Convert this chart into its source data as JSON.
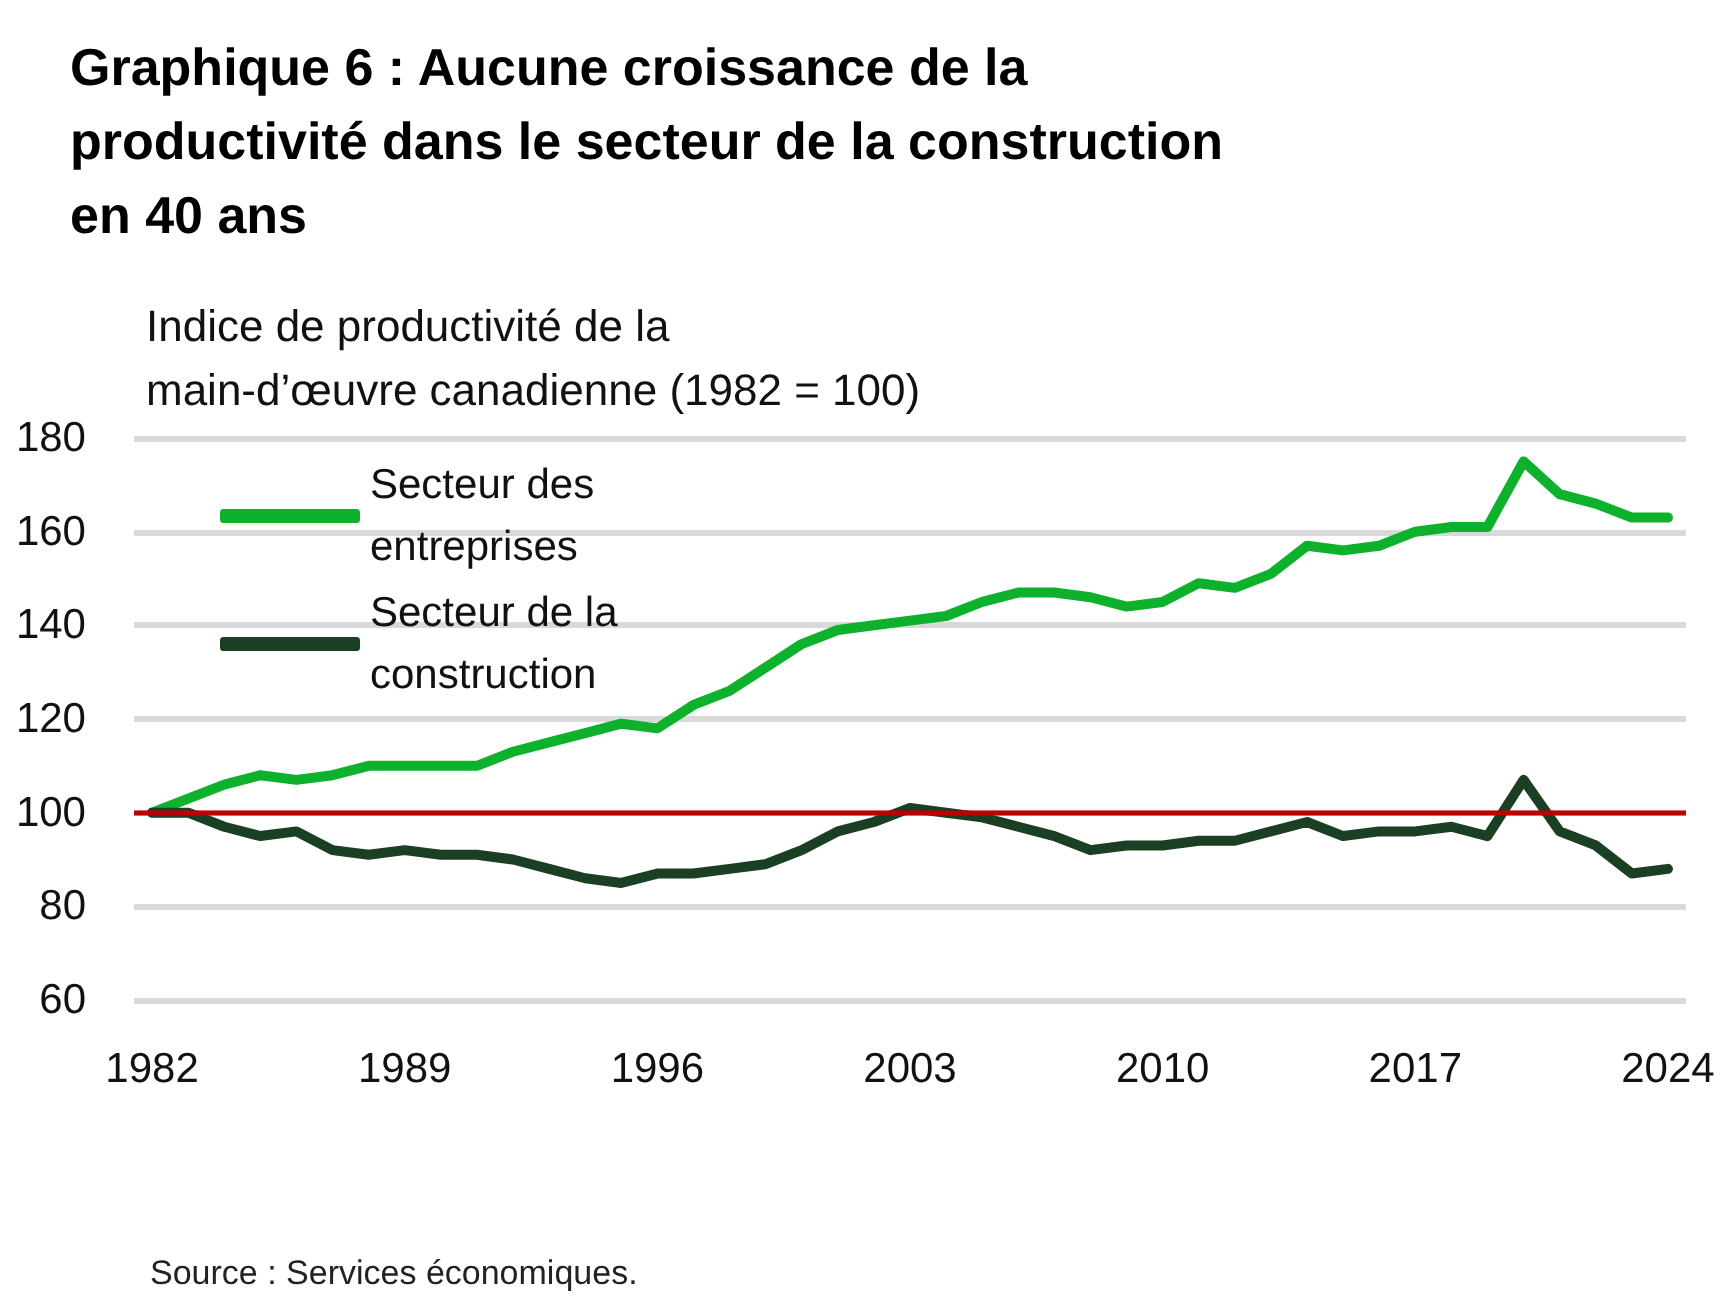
{
  "chart_data": {
    "type": "line",
    "title": "Graphique 6 : Aucune croissance de la productivité dans le secteur de la construction en 40 ans",
    "ylabel": "Indice de productivité de la main-d’œuvre canadienne (1982 = 100)",
    "annotations": [
      "Source : Services économiques."
    ],
    "x": [
      1982,
      1983,
      1984,
      1985,
      1986,
      1987,
      1988,
      1989,
      1990,
      1991,
      1992,
      1993,
      1994,
      1995,
      1996,
      1997,
      1998,
      1999,
      2000,
      2001,
      2002,
      2003,
      2004,
      2005,
      2006,
      2007,
      2008,
      2009,
      2010,
      2011,
      2012,
      2013,
      2014,
      2015,
      2016,
      2017,
      2018,
      2019,
      2020,
      2021,
      2022,
      2023,
      2024
    ],
    "series": [
      {
        "name": "Secteur des entreprises",
        "color": "#0db12b",
        "values": [
          100,
          103,
          106,
          108,
          107,
          108,
          110,
          110,
          110,
          110,
          113,
          115,
          117,
          119,
          118,
          123,
          126,
          131,
          136,
          139,
          140,
          141,
          142,
          145,
          147,
          147,
          146,
          144,
          145,
          149,
          148,
          151,
          157,
          156,
          157,
          160,
          161,
          161,
          175,
          168,
          166,
          163,
          163
        ]
      },
      {
        "name": "Secteur de la construction",
        "color": "#1a3f22",
        "values": [
          100,
          100,
          97,
          95,
          96,
          92,
          91,
          92,
          91,
          91,
          90,
          88,
          86,
          85,
          87,
          87,
          88,
          89,
          92,
          96,
          98,
          101,
          100,
          99,
          97,
          95,
          92,
          93,
          93,
          94,
          94,
          96,
          98,
          95,
          96,
          96,
          97,
          95,
          107,
          96,
          93,
          87,
          88
        ]
      }
    ],
    "xlim": [
      1981.5,
      2024.5
    ],
    "xticks": [
      1982,
      1989,
      1996,
      2003,
      2010,
      2017,
      2024
    ],
    "ylim": [
      60,
      180
    ],
    "yticks": [
      60,
      80,
      100,
      120,
      140,
      160,
      180
    ],
    "ref_lines": [
      {
        "axis": "y",
        "value": 100,
        "color": "#c00000"
      }
    ],
    "grid": "y",
    "legend": "top left",
    "marker": "none",
    "line_style": "solid"
  }
}
